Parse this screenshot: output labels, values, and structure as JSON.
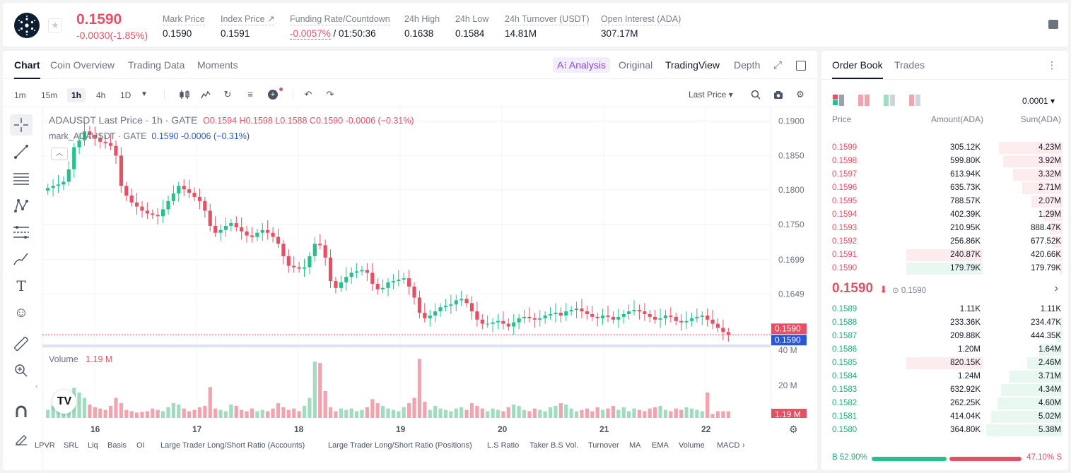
{
  "header": {
    "price": "0.1590",
    "change": "-0.0030(-1.85%)",
    "stats": [
      {
        "label": "Mark Price",
        "value": "0.1590"
      },
      {
        "label": "Index Price ↗",
        "value": "0.1591"
      },
      {
        "label": "Funding Rate/Countdown",
        "value_neg": "-0.0057%",
        "value": " / 01:50:36"
      },
      {
        "label": "24h High",
        "value": "0.1638"
      },
      {
        "label": "24h Low",
        "value": "0.1584"
      },
      {
        "label": "24h Turnover (USDT)",
        "value": "14.81M"
      },
      {
        "label": "Open Interest (ADA)",
        "value": "307.17M"
      }
    ]
  },
  "chart_tabs": [
    "Chart",
    "Coin Overview",
    "Trading Data",
    "Moments"
  ],
  "view_tabs": {
    "ai": "A⁝ Analysis",
    "original": "Original",
    "tradingview": "TradingView",
    "depth": "Depth"
  },
  "intervals": [
    "1m",
    "15m",
    "1h",
    "4h",
    "1D"
  ],
  "price_type": "Last Price ▾",
  "legend": {
    "symbol": "ADAUSDT Last Price · 1h · GATE",
    "ohlc": "O0.1594 H0.1598 L0.1588 C0.1590 -0.0006 (−0.31%)",
    "mark_name": "mark_ADAUSDT · GATE",
    "mark_vals": "0.1590  -0.0006  (−0.31%)"
  },
  "volume_label": "Volume",
  "volume_value": "1.19 M",
  "bottom_indicators": [
    "LPVR",
    "SRL",
    "Liq",
    "Basis",
    "OI",
    "Large Trader Long/Short Ratio (Accounts)",
    "Large Trader Long/Short Ratio (Positions)",
    "L.S Ratio",
    "Taker B.S Vol.",
    "Turnover",
    "MA",
    "EMA",
    "Volume",
    "MACD"
  ],
  "orderbook": {
    "tabs": [
      "Order Book",
      "Trades"
    ],
    "precision": "0.0001 ▾",
    "headers": [
      "Price",
      "Amount(ADA)",
      "Sum(ADA)"
    ],
    "asks": [
      {
        "price": "0.1599",
        "amount": "305.12K",
        "sum": "4.23M",
        "depth": 0.82
      },
      {
        "price": "0.1598",
        "amount": "599.80K",
        "sum": "3.92M",
        "depth": 0.76
      },
      {
        "price": "0.1597",
        "amount": "613.94K",
        "sum": "3.32M",
        "depth": 0.64
      },
      {
        "price": "0.1596",
        "amount": "635.73K",
        "sum": "2.71M",
        "depth": 0.52
      },
      {
        "price": "0.1595",
        "amount": "788.57K",
        "sum": "2.07M",
        "depth": 0.4
      },
      {
        "price": "0.1594",
        "amount": "402.39K",
        "sum": "1.29M",
        "depth": 0.25
      },
      {
        "price": "0.1593",
        "amount": "210.95K",
        "sum": "888.47K",
        "depth": 0.17
      },
      {
        "price": "0.1592",
        "amount": "256.86K",
        "sum": "677.52K",
        "depth": 0.13
      },
      {
        "price": "0.1591",
        "amount": "240.87K",
        "sum": "420.66K",
        "depth": 0.08,
        "hl": 0.36
      },
      {
        "price": "0.1590",
        "amount": "179.79K",
        "sum": "179.79K",
        "depth": 0.035,
        "hl": 0.36,
        "hlgreen": true
      }
    ],
    "mid_price": "0.1590",
    "mid_arrow": "🡓",
    "mark": "0.1590",
    "bids": [
      {
        "price": "0.1589",
        "amount": "1.11K",
        "sum": "1.11K",
        "depth": 0.002
      },
      {
        "price": "0.1588",
        "amount": "233.36K",
        "sum": "234.47K",
        "depth": 0.04
      },
      {
        "price": "0.1587",
        "amount": "209.88K",
        "sum": "444.35K",
        "depth": 0.08
      },
      {
        "price": "0.1586",
        "amount": "1.20M",
        "sum": "1.64M",
        "depth": 0.3
      },
      {
        "price": "0.1585",
        "amount": "820.15K",
        "sum": "2.46M",
        "depth": 0.45,
        "hl": 0.36
      },
      {
        "price": "0.1584",
        "amount": "1.24M",
        "sum": "3.71M",
        "depth": 0.68
      },
      {
        "price": "0.1583",
        "amount": "632.92K",
        "sum": "4.34M",
        "depth": 0.79
      },
      {
        "price": "0.1582",
        "amount": "262.25K",
        "sum": "4.60M",
        "depth": 0.84
      },
      {
        "price": "0.1581",
        "amount": "414.04K",
        "sum": "5.02M",
        "depth": 0.92
      },
      {
        "price": "0.1580",
        "amount": "364.80K",
        "sum": "5.38M",
        "depth": 0.98
      }
    ],
    "buy_ratio": "B 52.90%",
    "sell_ratio": "47.10% S"
  },
  "colors": {
    "up": "#22c38a",
    "down": "#e84f62",
    "upVol": "#9fdcc0",
    "downVol": "#f2a3ae"
  },
  "chart_data": {
    "type": "candlestick",
    "y_ticks": [
      "0.1900",
      "0.1850",
      "0.1800",
      "0.1750",
      "0.1699",
      "0.1649"
    ],
    "ylim": [
      0.158,
      0.192
    ],
    "x_ticks": [
      "16",
      "17",
      "18",
      "19",
      "20",
      "21",
      "22"
    ],
    "volume_ticks": [
      "40 M",
      "20 M"
    ],
    "last_price_label": "0.1590",
    "mark_price_label": "0.1590",
    "volume_last_label": "1.19 M",
    "close_path": [
      0.1803,
      0.1806,
      0.1808,
      0.1812,
      0.183,
      0.1862,
      0.1872,
      0.1885,
      0.188,
      0.1876,
      0.187,
      0.1868,
      0.1864,
      0.185,
      0.1806,
      0.1792,
      0.1782,
      0.1776,
      0.177,
      0.1766,
      0.1764,
      0.1762,
      0.1772,
      0.1784,
      0.1795,
      0.1806,
      0.1801,
      0.1796,
      0.179,
      0.1784,
      0.177,
      0.1748,
      0.1738,
      0.1742,
      0.1748,
      0.1752,
      0.1746,
      0.174,
      0.1734,
      0.1732,
      0.1738,
      0.1742,
      0.1738,
      0.1732,
      0.1722,
      0.1704,
      0.169,
      0.1688,
      0.1686,
      0.1688,
      0.1704,
      0.1722,
      0.172,
      0.1702,
      0.1668,
      0.1658,
      0.1666,
      0.1674,
      0.168,
      0.1682,
      0.1684,
      0.168,
      0.1664,
      0.1656,
      0.1658,
      0.1666,
      0.1668,
      0.167,
      0.1672,
      0.166,
      0.1644,
      0.1622,
      0.1614,
      0.1618,
      0.1624,
      0.163,
      0.1632,
      0.1634,
      0.164,
      0.1642,
      0.1636,
      0.1624,
      0.1612,
      0.1606,
      0.1606,
      0.1608,
      0.161,
      0.1606,
      0.1602,
      0.1608,
      0.1614,
      0.1616,
      0.1614,
      0.1612,
      0.1614,
      0.1618,
      0.162,
      0.1622,
      0.1618,
      0.1624,
      0.1626,
      0.1628,
      0.1624,
      0.162,
      0.1616,
      0.1614,
      0.1618,
      0.1616,
      0.1612,
      0.1616,
      0.162,
      0.1624,
      0.1626,
      0.1624,
      0.162,
      0.1616,
      0.1612,
      0.1614,
      0.1618,
      0.1616,
      0.161,
      0.1608,
      0.161,
      0.1614,
      0.1616,
      0.1618,
      0.1612,
      0.1606,
      0.16,
      0.1594,
      0.159
    ],
    "volume_path": [
      12,
      18,
      22,
      28,
      32,
      45,
      38,
      30,
      20,
      16,
      14,
      12,
      18,
      30,
      22,
      12,
      10,
      8,
      9,
      10,
      14,
      12,
      10,
      16,
      22,
      20,
      14,
      10,
      12,
      16,
      18,
      46,
      14,
      12,
      10,
      20,
      18,
      12,
      10,
      14,
      10,
      12,
      10,
      14,
      22,
      16,
      12,
      14,
      10,
      18,
      30,
      84,
      82,
      40,
      16,
      10,
      14,
      12,
      14,
      10,
      12,
      16,
      28,
      22,
      18,
      14,
      12,
      10,
      16,
      22,
      30,
      88,
      24,
      12,
      18,
      14,
      12,
      10,
      14,
      16,
      12,
      22,
      18,
      14,
      10,
      14,
      12,
      10,
      16,
      20,
      18,
      12,
      10,
      14,
      12,
      10,
      16,
      18,
      22,
      20,
      14,
      10,
      12,
      14,
      10,
      16,
      12,
      14,
      18,
      12,
      16,
      10,
      14,
      12,
      10,
      14,
      16,
      18,
      12,
      10,
      14,
      12,
      16,
      14,
      12,
      10,
      38,
      6
    ]
  }
}
